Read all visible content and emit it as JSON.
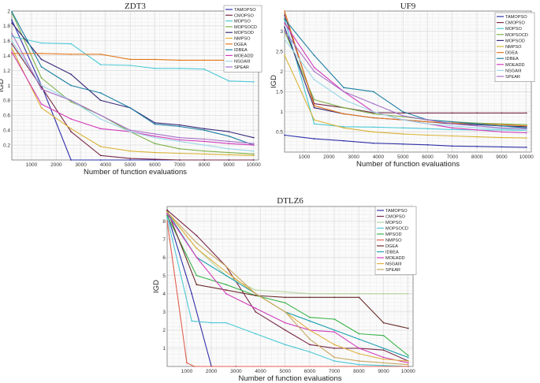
{
  "chart_data": [
    {
      "type": "line",
      "title": "ZDT3",
      "xlabel": "Number of function evaluations",
      "ylabel": "IGD",
      "xlim": [
        200,
        10200
      ],
      "ylim": [
        0,
        2
      ],
      "xticks": [
        1000,
        2000,
        3000,
        4000,
        5000,
        6000,
        7000,
        8000,
        9000,
        10000
      ],
      "yticks": [
        0.2,
        0.4,
        0.6,
        0.8,
        1,
        1.2,
        1.4,
        1.6,
        1.8,
        2
      ],
      "ytick_labels": [
        "0.2",
        "0.4",
        "0.6",
        "0.8",
        "1",
        "1.2",
        "1.4",
        "1.6",
        "1.8",
        "2"
      ],
      "x": [
        200,
        1400,
        2600,
        3800,
        5000,
        6000,
        7000,
        8000,
        9000,
        10000
      ],
      "legend": "top-right",
      "series": [
        {
          "name": "TAMOPSO",
          "color": "#2f2fa8",
          "values": [
            1.88,
            1.0,
            0.0,
            0.0,
            0.0,
            0.0,
            0.0,
            0.0,
            0.0,
            0.0
          ]
        },
        {
          "name": "CMOPSO",
          "color": "#7a2a4a",
          "values": [
            1.56,
            0.98,
            0.38,
            0.06,
            0.02,
            0.01,
            0.0,
            0.0,
            0.0,
            0.0
          ]
        },
        {
          "name": "MOPSO",
          "color": "#4cc9d6",
          "values": [
            1.66,
            1.57,
            1.56,
            1.28,
            1.27,
            1.23,
            1.23,
            1.22,
            1.06,
            1.05
          ]
        },
        {
          "name": "MOPSOCD",
          "color": "#7fb24a",
          "values": [
            1.98,
            1.1,
            0.78,
            0.6,
            0.38,
            0.22,
            0.15,
            0.12,
            0.1,
            0.08
          ]
        },
        {
          "name": "MOPSOD",
          "color": "#3a2a7a",
          "values": [
            1.84,
            1.35,
            1.15,
            0.8,
            0.7,
            0.5,
            0.47,
            0.42,
            0.38,
            0.3
          ]
        },
        {
          "name": "NMPSO",
          "color": "#d9b233",
          "values": [
            1.5,
            0.7,
            0.42,
            0.18,
            0.12,
            0.1,
            0.09,
            0.08,
            0.07,
            0.06
          ]
        },
        {
          "name": "DGEA",
          "color": "#e4781c",
          "values": [
            1.43,
            1.43,
            1.42,
            1.42,
            1.35,
            1.35,
            1.34,
            1.34,
            1.34,
            1.34
          ]
        },
        {
          "name": "IDBEA",
          "color": "#1c7fa3",
          "values": [
            1.99,
            1.25,
            1.0,
            0.9,
            0.7,
            0.48,
            0.45,
            0.4,
            0.32,
            0.2
          ]
        },
        {
          "name": "MOEADD",
          "color": "#d23cba",
          "values": [
            1.45,
            0.75,
            0.55,
            0.42,
            0.38,
            0.32,
            0.27,
            0.25,
            0.22,
            0.2
          ]
        },
        {
          "name": "NSGAIII",
          "color": "#9ad7e6",
          "values": [
            1.6,
            1.0,
            0.8,
            0.55,
            0.38,
            0.3,
            0.25,
            0.2,
            0.15,
            0.12
          ]
        },
        {
          "name": "SPEAR",
          "color": "#a670c8",
          "values": [
            1.7,
            0.95,
            0.8,
            0.6,
            0.4,
            0.35,
            0.3,
            0.28,
            0.25,
            0.22
          ]
        }
      ]
    },
    {
      "type": "line",
      "title": "UF9",
      "xlabel": "Number of function evaluations",
      "ylabel": "IGD",
      "xlim": [
        200,
        10200
      ],
      "ylim": [
        0,
        3.5
      ],
      "xticks": [
        1000,
        2000,
        3000,
        4000,
        5000,
        6000,
        7000,
        8000,
        9000,
        10000
      ],
      "yticks": [
        0.5,
        1,
        1.5,
        2,
        2.5,
        3
      ],
      "ytick_labels": [
        "0.5",
        "1",
        "1.5",
        "2",
        "2.5",
        "3"
      ],
      "x": [
        200,
        1400,
        2600,
        3800,
        5000,
        6000,
        7000,
        8000,
        9000,
        10000
      ],
      "legend": "top-right",
      "series": [
        {
          "name": "TAMOPSO",
          "color": "#2f2fa8",
          "values": [
            0.42,
            0.33,
            0.28,
            0.22,
            0.2,
            0.18,
            0.15,
            0.14,
            0.13,
            0.12
          ]
        },
        {
          "name": "CMOPSO",
          "color": "#7a2a4a",
          "values": [
            3.4,
            1.2,
            1.1,
            0.98,
            0.97,
            0.97,
            0.97,
            0.97,
            0.97,
            0.97
          ]
        },
        {
          "name": "MOPSO",
          "color": "#4cc9d6",
          "values": [
            3.3,
            0.7,
            0.63,
            0.62,
            0.6,
            0.58,
            0.56,
            0.55,
            0.55,
            0.54
          ]
        },
        {
          "name": "MOPSOCD",
          "color": "#7fb24a",
          "values": [
            3.0,
            1.3,
            1.1,
            0.95,
            0.88,
            0.8,
            0.75,
            0.72,
            0.7,
            0.68
          ]
        },
        {
          "name": "MOPSOD",
          "color": "#3a2a7a",
          "values": [
            3.1,
            1.1,
            0.95,
            0.85,
            0.8,
            0.75,
            0.7,
            0.68,
            0.65,
            0.63
          ]
        },
        {
          "name": "NMPSO",
          "color": "#d9b233",
          "values": [
            2.4,
            0.8,
            0.6,
            0.5,
            0.45,
            0.42,
            0.4,
            0.38,
            0.36,
            0.35
          ]
        },
        {
          "name": "DGEA",
          "color": "#e4781c",
          "values": [
            3.5,
            1.15,
            0.95,
            0.85,
            0.8,
            0.75,
            0.72,
            0.7,
            0.68,
            0.65
          ]
        },
        {
          "name": "IDBEA",
          "color": "#1c7fa3",
          "values": [
            3.3,
            2.4,
            1.6,
            1.5,
            1.0,
            0.8,
            0.75,
            0.7,
            0.65,
            0.6
          ]
        },
        {
          "name": "MOEADD",
          "color": "#d23cba",
          "values": [
            3.2,
            2.1,
            1.5,
            1.0,
            0.8,
            0.7,
            0.6,
            0.55,
            0.5,
            0.48
          ]
        },
        {
          "name": "NSGAIII",
          "color": "#9ad7e6",
          "values": [
            2.8,
            1.8,
            1.3,
            1.0,
            0.8,
            0.7,
            0.65,
            0.6,
            0.58,
            0.55
          ]
        },
        {
          "name": "SPEAR",
          "color": "#a670c8",
          "values": [
            3.0,
            2.0,
            1.5,
            1.2,
            0.9,
            0.8,
            0.7,
            0.65,
            0.6,
            0.58
          ]
        }
      ]
    },
    {
      "type": "line",
      "title": "DTLZ6",
      "xlabel": "Number of function evaluations",
      "ylabel": "IGD",
      "xlim": [
        200,
        10200
      ],
      "ylim": [
        0,
        8.8
      ],
      "xticks": [
        1000,
        2000,
        3000,
        4000,
        5000,
        6000,
        7000,
        8000,
        9000,
        10000
      ],
      "yticks": [
        1,
        2,
        3,
        4,
        5,
        6,
        7,
        8
      ],
      "ytick_labels": [
        "1",
        "2",
        "3",
        "4",
        "5",
        "6",
        "7",
        "8"
      ],
      "legend": "top-right",
      "series": [
        {
          "name": "TAMOPSO",
          "color": "#2f2fa8",
          "x": [
            200,
            1200,
            2000,
            3000,
            10000
          ],
          "values": [
            8.4,
            4.0,
            0.0,
            0.0,
            0.0
          ]
        },
        {
          "name": "CMOPSO",
          "color": "#7a2a4a",
          "x": [
            200,
            1400,
            2600,
            3800,
            5000,
            6000,
            7000,
            8000,
            9000,
            10000
          ],
          "values": [
            8.6,
            7.2,
            5.5,
            3.0,
            2.0,
            1.2,
            1.0,
            1.0,
            0.9,
            0.3
          ]
        },
        {
          "name": "MOPSO",
          "color": "#b8d6a0",
          "x": [
            200,
            1400,
            2600,
            3800,
            5000,
            6000,
            7000,
            8000,
            9000,
            10000
          ],
          "values": [
            8.5,
            6.5,
            5.0,
            4.2,
            4.1,
            4.0,
            4.0,
            4.0,
            4.0,
            4.0
          ]
        },
        {
          "name": "MOPSOCD",
          "color": "#4cc9d6",
          "x": [
            200,
            1200,
            2000,
            2600,
            3800,
            5000,
            6000,
            7000,
            8000,
            9000,
            10000
          ],
          "values": [
            8.2,
            2.5,
            2.4,
            2.4,
            1.8,
            1.2,
            0.8,
            0.3,
            0.1,
            0.05,
            0.0
          ]
        },
        {
          "name": "MPSOD",
          "color": "#3ab54a",
          "x": [
            200,
            1400,
            2600,
            3800,
            5000,
            6000,
            7000,
            8000,
            9000,
            10000
          ],
          "values": [
            8.3,
            5.0,
            4.5,
            3.9,
            3.5,
            2.7,
            2.6,
            1.8,
            1.7,
            0.6
          ]
        },
        {
          "name": "NMPSO",
          "color": "#e06050",
          "x": [
            200,
            1000,
            1300,
            10000
          ],
          "values": [
            8.0,
            0.2,
            0.0,
            0.0
          ]
        },
        {
          "name": "DGEA",
          "color": "#6a2a2a",
          "x": [
            200,
            1400,
            2600,
            3800,
            5000,
            6000,
            7000,
            8000,
            9000,
            10000
          ],
          "values": [
            8.6,
            4.5,
            4.2,
            3.9,
            3.8,
            3.8,
            3.8,
            3.8,
            2.4,
            2.1
          ]
        },
        {
          "name": "IDBEA",
          "color": "#1c9fb0",
          "x": [
            200,
            1400,
            2600,
            3800,
            5000,
            6000,
            7000,
            8000,
            9000,
            10000
          ],
          "values": [
            8.5,
            6.0,
            5.0,
            4.0,
            3.0,
            2.5,
            2.0,
            1.5,
            1.0,
            0.5
          ]
        },
        {
          "name": "MOEADD",
          "color": "#d23cba",
          "x": [
            200,
            1400,
            2600,
            3800,
            5000,
            6000,
            7000,
            8000,
            9000,
            10000
          ],
          "values": [
            8.4,
            6.0,
            4.0,
            3.2,
            2.4,
            2.0,
            1.9,
            1.0,
            0.5,
            0.2
          ]
        },
        {
          "name": "NSGAIII",
          "color": "#e0b040",
          "x": [
            200,
            1400,
            2600,
            3800,
            5000,
            6000,
            7000,
            8000,
            9000,
            10000
          ],
          "values": [
            8.5,
            6.5,
            5.2,
            4.0,
            3.0,
            2.0,
            1.2,
            0.7,
            0.4,
            0.3
          ]
        },
        {
          "name": "SPEAR",
          "color": "#c8a860",
          "x": [
            200,
            1400,
            2600,
            3800,
            5000,
            6000,
            7000,
            8000,
            9000,
            10000
          ],
          "values": [
            8.5,
            6.8,
            5.5,
            4.0,
            3.0,
            1.5,
            0.5,
            0.3,
            0.2,
            0.1
          ]
        }
      ]
    }
  ]
}
